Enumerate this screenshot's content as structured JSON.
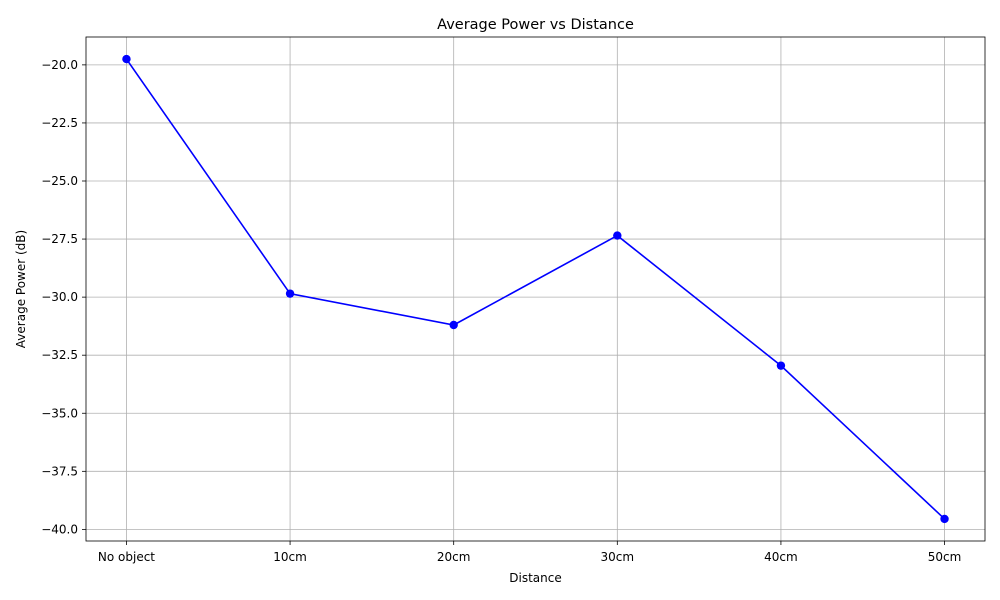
{
  "chart_data": {
    "type": "line",
    "title": "Average Power vs Distance",
    "xlabel": "Distance",
    "ylabel": "Average Power (dB)",
    "categories": [
      "No object",
      "10cm",
      "20cm",
      "30cm",
      "40cm",
      "50cm"
    ],
    "series": [
      {
        "values": [
          -19.75,
          -29.85,
          -31.2,
          -27.35,
          -32.95,
          -39.55
        ],
        "color": "#0000ff",
        "marker": "circle"
      }
    ],
    "yticks": [
      -20.0,
      -22.5,
      -25.0,
      -27.5,
      -30.0,
      -32.5,
      -35.0,
      -37.5,
      -40.0
    ],
    "ytick_labels": [
      "−20.0",
      "−22.5",
      "−25.0",
      "−27.5",
      "−30.0",
      "−32.5",
      "−35.0",
      "−37.5",
      "−40.0"
    ],
    "ylim": [
      -40.5,
      -18.8
    ],
    "grid": true
  }
}
